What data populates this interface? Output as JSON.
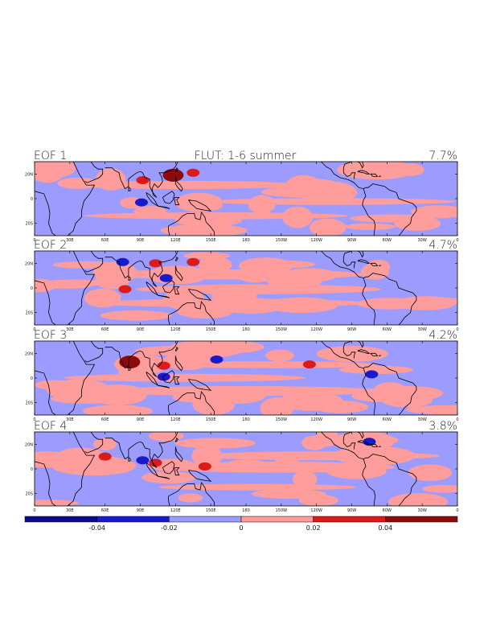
{
  "chart_data": {
    "type": "heatmap",
    "title": "FLUT: 1-6 summer",
    "panels": [
      {
        "name": "EOF 1",
        "percent": "7.7%"
      },
      {
        "name": "EOF 2",
        "percent": "4.7%"
      },
      {
        "name": "EOF 3",
        "percent": "4.2%"
      },
      {
        "name": "EOF 4",
        "percent": "3.8%"
      }
    ],
    "x_ticks": [
      "0",
      "30E",
      "60E",
      "90E",
      "120E",
      "150E",
      "180",
      "150W",
      "120W",
      "90W",
      "60W",
      "30W",
      "0"
    ],
    "x_lon_range": [
      0,
      360
    ],
    "y_ticks": [
      "20N",
      "0",
      "20S"
    ],
    "y_lat_range": [
      -30,
      30
    ],
    "colorbar": {
      "ticks": [
        "-0.04",
        "-0.02",
        "0",
        "0.02",
        "0.04"
      ],
      "levels": [
        -0.06,
        -0.04,
        -0.02,
        0,
        0.02,
        0.04,
        0.06
      ],
      "colors": [
        "#0a0a8c",
        "#1a1acd",
        "#9c9cff",
        "#ff9c9c",
        "#dc1a1a",
        "#8c0a0a"
      ]
    },
    "anomalies": [
      [
        {
          "lon": 118,
          "lat": 19,
          "value": 0.045
        },
        {
          "lon": 92,
          "lat": 15,
          "value": 0.032
        },
        {
          "lon": 135,
          "lat": 21,
          "value": 0.025
        },
        {
          "lon": 91,
          "lat": -3,
          "value": -0.025
        }
      ],
      [
        {
          "lon": 75,
          "lat": 21,
          "value": -0.035
        },
        {
          "lon": 77,
          "lat": -1,
          "value": 0.03
        },
        {
          "lon": 135,
          "lat": 21,
          "value": 0.028
        },
        {
          "lon": 112,
          "lat": 8,
          "value": -0.03
        },
        {
          "lon": 103,
          "lat": 20,
          "value": 0.022
        }
      ],
      [
        {
          "lon": 81,
          "lat": 13,
          "value": 0.045
        },
        {
          "lon": 110,
          "lat": 10,
          "value": 0.025
        },
        {
          "lon": 110,
          "lat": 1,
          "value": -0.022
        },
        {
          "lon": 155,
          "lat": 15,
          "value": -0.025
        },
        {
          "lon": 234,
          "lat": 11,
          "value": 0.022
        },
        {
          "lon": 287,
          "lat": 3,
          "value": -0.025
        }
      ],
      [
        {
          "lon": 92,
          "lat": 7,
          "value": -0.038
        },
        {
          "lon": 103,
          "lat": 5,
          "value": 0.032
        },
        {
          "lon": 60,
          "lat": 10,
          "value": 0.03
        },
        {
          "lon": 145,
          "lat": 2,
          "value": 0.028
        },
        {
          "lon": 285,
          "lat": 22,
          "value": -0.022
        }
      ]
    ]
  }
}
